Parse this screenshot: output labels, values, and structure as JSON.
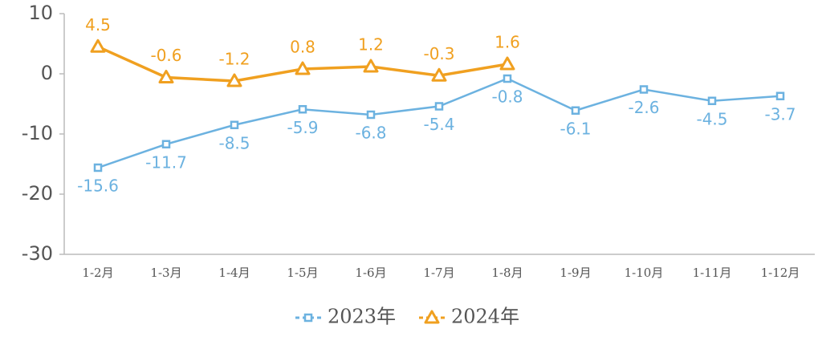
{
  "chart_data": {
    "type": "line",
    "categories": [
      "1-2月",
      "1-3月",
      "1-4月",
      "1-5月",
      "1-6月",
      "1-7月",
      "1-8月",
      "1-9月",
      "1-10月",
      "1-11月",
      "1-12月"
    ],
    "series": [
      {
        "name": "2023年",
        "color": "#6cb2e0",
        "marker": "square",
        "values": [
          -15.6,
          -11.7,
          -8.5,
          -5.9,
          -6.8,
          -5.4,
          -0.8,
          -6.1,
          -2.6,
          -4.5,
          -3.7
        ]
      },
      {
        "name": "2024年",
        "color": "#f0a020",
        "marker": "triangle",
        "values": [
          4.5,
          -0.6,
          -1.2,
          0.8,
          1.2,
          -0.3,
          1.6,
          null,
          null,
          null,
          null
        ]
      }
    ],
    "ylim": [
      -30,
      10
    ],
    "yticks": [
      10,
      0,
      -10,
      -20,
      -30
    ],
    "grid": false,
    "legend": "bottom"
  }
}
